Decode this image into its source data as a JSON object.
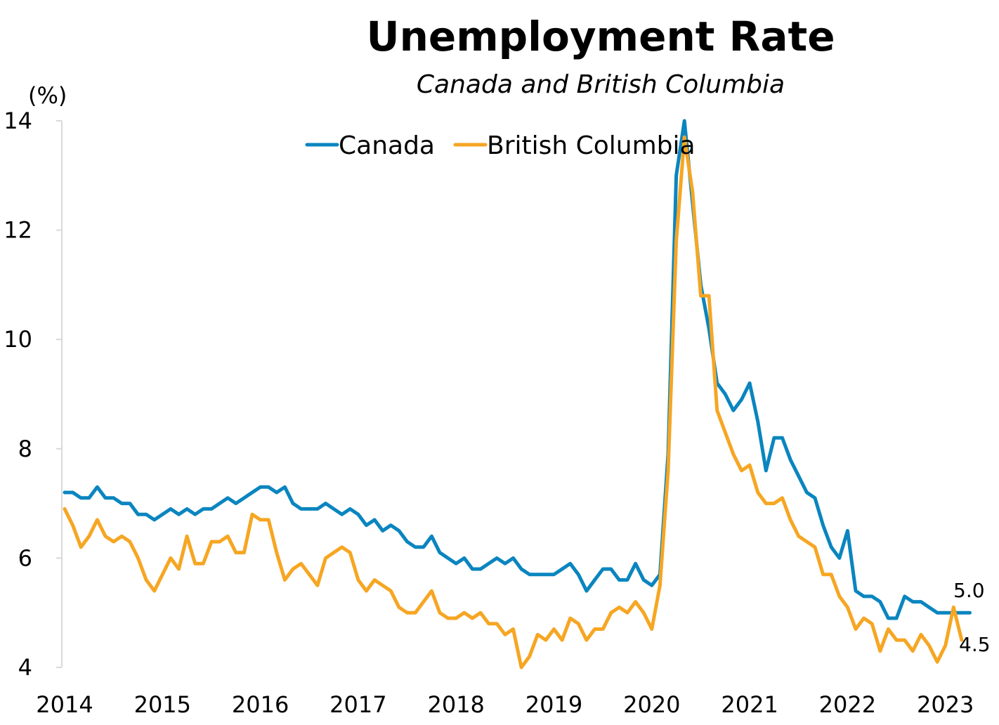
{
  "chart_data": {
    "type": "line",
    "title": "Unemployment Rate",
    "subtitle": "Canada and British Columbia",
    "ylabel": "(%)",
    "ylim": [
      4,
      14
    ],
    "yticks": [
      "4",
      "6",
      "8",
      "10",
      "12",
      "14"
    ],
    "xticks": [
      "2014",
      "2015",
      "2016",
      "2017",
      "2018",
      "2019",
      "2020",
      "2021",
      "2022",
      "2023"
    ],
    "xrange": [
      "2014-01",
      "2023-04"
    ],
    "grid": false,
    "legend": "top-center",
    "series": [
      {
        "name": "Canada",
        "color": "#0a85bf",
        "end_label": "5.0",
        "points": [
          [
            "2014-01",
            7.2
          ],
          [
            "2014-02",
            7.2
          ],
          [
            "2014-03",
            7.1
          ],
          [
            "2014-04",
            7.1
          ],
          [
            "2014-05",
            7.3
          ],
          [
            "2014-06",
            7.1
          ],
          [
            "2014-07",
            7.1
          ],
          [
            "2014-08",
            7.0
          ],
          [
            "2014-09",
            7.0
          ],
          [
            "2014-10",
            6.8
          ],
          [
            "2014-11",
            6.8
          ],
          [
            "2014-12",
            6.7
          ],
          [
            "2015-01",
            6.8
          ],
          [
            "2015-02",
            6.9
          ],
          [
            "2015-03",
            6.8
          ],
          [
            "2015-04",
            6.9
          ],
          [
            "2015-05",
            6.8
          ],
          [
            "2015-06",
            6.9
          ],
          [
            "2015-07",
            6.9
          ],
          [
            "2015-08",
            7.0
          ],
          [
            "2015-09",
            7.1
          ],
          [
            "2015-10",
            7.0
          ],
          [
            "2015-11",
            7.1
          ],
          [
            "2015-12",
            7.2
          ],
          [
            "2016-01",
            7.3
          ],
          [
            "2016-02",
            7.3
          ],
          [
            "2016-03",
            7.2
          ],
          [
            "2016-04",
            7.3
          ],
          [
            "2016-05",
            7.0
          ],
          [
            "2016-06",
            6.9
          ],
          [
            "2016-07",
            6.9
          ],
          [
            "2016-08",
            6.9
          ],
          [
            "2016-09",
            7.0
          ],
          [
            "2016-10",
            6.9
          ],
          [
            "2016-11",
            6.8
          ],
          [
            "2016-12",
            6.9
          ],
          [
            "2017-01",
            6.8
          ],
          [
            "2017-02",
            6.6
          ],
          [
            "2017-03",
            6.7
          ],
          [
            "2017-04",
            6.5
          ],
          [
            "2017-05",
            6.6
          ],
          [
            "2017-06",
            6.5
          ],
          [
            "2017-07",
            6.3
          ],
          [
            "2017-08",
            6.2
          ],
          [
            "2017-09",
            6.2
          ],
          [
            "2017-10",
            6.4
          ],
          [
            "2017-11",
            6.1
          ],
          [
            "2017-12",
            6.0
          ],
          [
            "2018-01",
            5.9
          ],
          [
            "2018-02",
            6.0
          ],
          [
            "2018-03",
            5.8
          ],
          [
            "2018-04",
            5.8
          ],
          [
            "2018-05",
            5.9
          ],
          [
            "2018-06",
            6.0
          ],
          [
            "2018-07",
            5.9
          ],
          [
            "2018-08",
            6.0
          ],
          [
            "2018-09",
            5.8
          ],
          [
            "2018-10",
            5.7
          ],
          [
            "2018-11",
            5.7
          ],
          [
            "2018-12",
            5.7
          ],
          [
            "2019-01",
            5.7
          ],
          [
            "2019-02",
            5.8
          ],
          [
            "2019-03",
            5.9
          ],
          [
            "2019-04",
            5.7
          ],
          [
            "2019-05",
            5.4
          ],
          [
            "2019-06",
            5.6
          ],
          [
            "2019-07",
            5.8
          ],
          [
            "2019-08",
            5.8
          ],
          [
            "2019-09",
            5.6
          ],
          [
            "2019-10",
            5.6
          ],
          [
            "2019-11",
            5.9
          ],
          [
            "2019-12",
            5.6
          ],
          [
            "2020-01",
            5.5
          ],
          [
            "2020-02",
            5.7
          ],
          [
            "2020-03",
            7.9
          ],
          [
            "2020-04",
            13.0
          ],
          [
            "2020-05",
            14.0
          ],
          [
            "2020-06",
            12.5
          ],
          [
            "2020-07",
            11.0
          ],
          [
            "2020-08",
            10.2
          ],
          [
            "2020-09",
            9.2
          ],
          [
            "2020-10",
            9.0
          ],
          [
            "2020-11",
            8.7
          ],
          [
            "2020-12",
            8.9
          ],
          [
            "2021-01",
            9.2
          ],
          [
            "2021-02",
            8.5
          ],
          [
            "2021-03",
            7.6
          ],
          [
            "2021-04",
            8.2
          ],
          [
            "2021-05",
            8.2
          ],
          [
            "2021-06",
            7.8
          ],
          [
            "2021-07",
            7.5
          ],
          [
            "2021-08",
            7.2
          ],
          [
            "2021-09",
            7.1
          ],
          [
            "2021-10",
            6.6
          ],
          [
            "2021-11",
            6.2
          ],
          [
            "2021-12",
            6.0
          ],
          [
            "2022-01",
            6.5
          ],
          [
            "2022-02",
            5.4
          ],
          [
            "2022-03",
            5.3
          ],
          [
            "2022-04",
            5.3
          ],
          [
            "2022-05",
            5.2
          ],
          [
            "2022-06",
            4.9
          ],
          [
            "2022-07",
            4.9
          ],
          [
            "2022-08",
            5.3
          ],
          [
            "2022-09",
            5.2
          ],
          [
            "2022-10",
            5.2
          ],
          [
            "2022-11",
            5.1
          ],
          [
            "2022-12",
            5.0
          ],
          [
            "2023-01",
            5.0
          ],
          [
            "2023-02",
            5.0
          ],
          [
            "2023-03",
            5.0
          ],
          [
            "2023-04",
            5.0
          ]
        ]
      },
      {
        "name": "British Columbia",
        "color": "#f6a623",
        "end_label": "4.5",
        "points": [
          [
            "2014-01",
            6.9
          ],
          [
            "2014-02",
            6.6
          ],
          [
            "2014-03",
            6.2
          ],
          [
            "2014-04",
            6.4
          ],
          [
            "2014-05",
            6.7
          ],
          [
            "2014-06",
            6.4
          ],
          [
            "2014-07",
            6.3
          ],
          [
            "2014-08",
            6.4
          ],
          [
            "2014-09",
            6.3
          ],
          [
            "2014-10",
            6.0
          ],
          [
            "2014-11",
            5.6
          ],
          [
            "2014-12",
            5.4
          ],
          [
            "2015-01",
            5.7
          ],
          [
            "2015-02",
            6.0
          ],
          [
            "2015-03",
            5.8
          ],
          [
            "2015-04",
            6.4
          ],
          [
            "2015-05",
            5.9
          ],
          [
            "2015-06",
            5.9
          ],
          [
            "2015-07",
            6.3
          ],
          [
            "2015-08",
            6.3
          ],
          [
            "2015-09",
            6.4
          ],
          [
            "2015-10",
            6.1
          ],
          [
            "2015-11",
            6.1
          ],
          [
            "2015-12",
            6.8
          ],
          [
            "2016-01",
            6.7
          ],
          [
            "2016-02",
            6.7
          ],
          [
            "2016-03",
            6.1
          ],
          [
            "2016-04",
            5.6
          ],
          [
            "2016-05",
            5.8
          ],
          [
            "2016-06",
            5.9
          ],
          [
            "2016-07",
            5.7
          ],
          [
            "2016-08",
            5.5
          ],
          [
            "2016-09",
            6.0
          ],
          [
            "2016-10",
            6.1
          ],
          [
            "2016-11",
            6.2
          ],
          [
            "2016-12",
            6.1
          ],
          [
            "2017-01",
            5.6
          ],
          [
            "2017-02",
            5.4
          ],
          [
            "2017-03",
            5.6
          ],
          [
            "2017-04",
            5.5
          ],
          [
            "2017-05",
            5.4
          ],
          [
            "2017-06",
            5.1
          ],
          [
            "2017-07",
            5.0
          ],
          [
            "2017-08",
            5.0
          ],
          [
            "2017-09",
            5.2
          ],
          [
            "2017-10",
            5.4
          ],
          [
            "2017-11",
            5.0
          ],
          [
            "2017-12",
            4.9
          ],
          [
            "2018-01",
            4.9
          ],
          [
            "2018-02",
            5.0
          ],
          [
            "2018-03",
            4.9
          ],
          [
            "2018-04",
            5.0
          ],
          [
            "2018-05",
            4.8
          ],
          [
            "2018-06",
            4.8
          ],
          [
            "2018-07",
            4.6
          ],
          [
            "2018-08",
            4.7
          ],
          [
            "2018-09",
            4.0
          ],
          [
            "2018-10",
            4.2
          ],
          [
            "2018-11",
            4.6
          ],
          [
            "2018-12",
            4.5
          ],
          [
            "2019-01",
            4.7
          ],
          [
            "2019-02",
            4.5
          ],
          [
            "2019-03",
            4.9
          ],
          [
            "2019-04",
            4.8
          ],
          [
            "2019-05",
            4.5
          ],
          [
            "2019-06",
            4.7
          ],
          [
            "2019-07",
            4.7
          ],
          [
            "2019-08",
            5.0
          ],
          [
            "2019-09",
            5.1
          ],
          [
            "2019-10",
            5.0
          ],
          [
            "2019-11",
            5.2
          ],
          [
            "2019-12",
            5.0
          ],
          [
            "2020-01",
            4.7
          ],
          [
            "2020-02",
            5.5
          ],
          [
            "2020-03",
            7.6
          ],
          [
            "2020-04",
            11.8
          ],
          [
            "2020-05",
            13.7
          ],
          [
            "2020-06",
            12.7
          ],
          [
            "2020-07",
            10.8
          ],
          [
            "2020-08",
            10.8
          ],
          [
            "2020-09",
            8.7
          ],
          [
            "2020-10",
            8.3
          ],
          [
            "2020-11",
            7.9
          ],
          [
            "2020-12",
            7.6
          ],
          [
            "2021-01",
            7.7
          ],
          [
            "2021-02",
            7.2
          ],
          [
            "2021-03",
            7.0
          ],
          [
            "2021-04",
            7.0
          ],
          [
            "2021-05",
            7.1
          ],
          [
            "2021-06",
            6.7
          ],
          [
            "2021-07",
            6.4
          ],
          [
            "2021-08",
            6.3
          ],
          [
            "2021-09",
            6.2
          ],
          [
            "2021-10",
            5.7
          ],
          [
            "2021-11",
            5.7
          ],
          [
            "2021-12",
            5.3
          ],
          [
            "2022-01",
            5.1
          ],
          [
            "2022-02",
            4.7
          ],
          [
            "2022-03",
            4.9
          ],
          [
            "2022-04",
            4.8
          ],
          [
            "2022-05",
            4.3
          ],
          [
            "2022-06",
            4.7
          ],
          [
            "2022-07",
            4.5
          ],
          [
            "2022-08",
            4.5
          ],
          [
            "2022-09",
            4.3
          ],
          [
            "2022-10",
            4.6
          ],
          [
            "2022-11",
            4.4
          ],
          [
            "2022-12",
            4.1
          ],
          [
            "2023-01",
            4.4
          ],
          [
            "2023-02",
            5.1
          ],
          [
            "2023-03",
            4.5
          ]
        ]
      }
    ]
  }
}
